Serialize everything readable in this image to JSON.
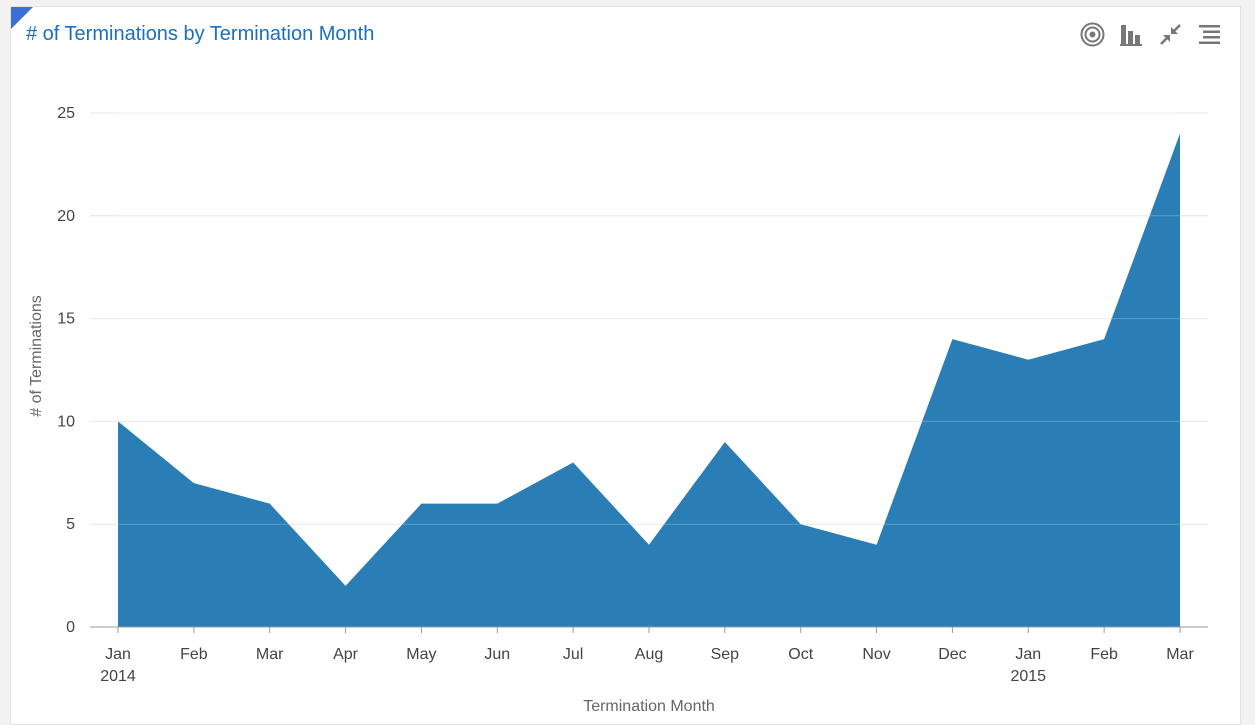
{
  "title": "# of Terminations by Termination Month",
  "toolbar": {
    "icons": [
      "target-icon",
      "bar-chart-icon",
      "collapse-icon",
      "menu-icon"
    ]
  },
  "colors": {
    "area": "#2a7db5",
    "gridline": "#e4e4e4",
    "title": "#1a6fbf",
    "corner": "#3a6fd8"
  },
  "chart_data": {
    "type": "area",
    "title": "# of Terminations by Termination Month",
    "xlabel": "Termination Month",
    "ylabel": "# of Terminations",
    "categories": [
      "Jan 2014",
      "Feb 2014",
      "Mar 2014",
      "Apr 2014",
      "May 2014",
      "Jun 2014",
      "Jul 2014",
      "Aug 2014",
      "Sep 2014",
      "Oct 2014",
      "Nov 2014",
      "Dec 2014",
      "Jan 2015",
      "Feb 2015",
      "Mar 2015"
    ],
    "tick_labels": [
      [
        "Jan",
        "2014"
      ],
      [
        "Feb"
      ],
      [
        "Mar"
      ],
      [
        "Apr"
      ],
      [
        "May"
      ],
      [
        "Jun"
      ],
      [
        "Jul"
      ],
      [
        "Aug"
      ],
      [
        "Sep"
      ],
      [
        "Oct"
      ],
      [
        "Nov"
      ],
      [
        "Dec"
      ],
      [
        "Jan",
        "2015"
      ],
      [
        "Feb"
      ],
      [
        "Mar"
      ]
    ],
    "values": [
      10,
      7,
      6,
      2,
      6,
      6,
      8,
      4,
      9,
      5,
      4,
      14,
      13,
      14,
      24
    ],
    "ylim": [
      0,
      25
    ],
    "yticks": [
      0,
      5,
      10,
      15,
      20,
      25
    ],
    "grid": true,
    "legend": "none"
  }
}
